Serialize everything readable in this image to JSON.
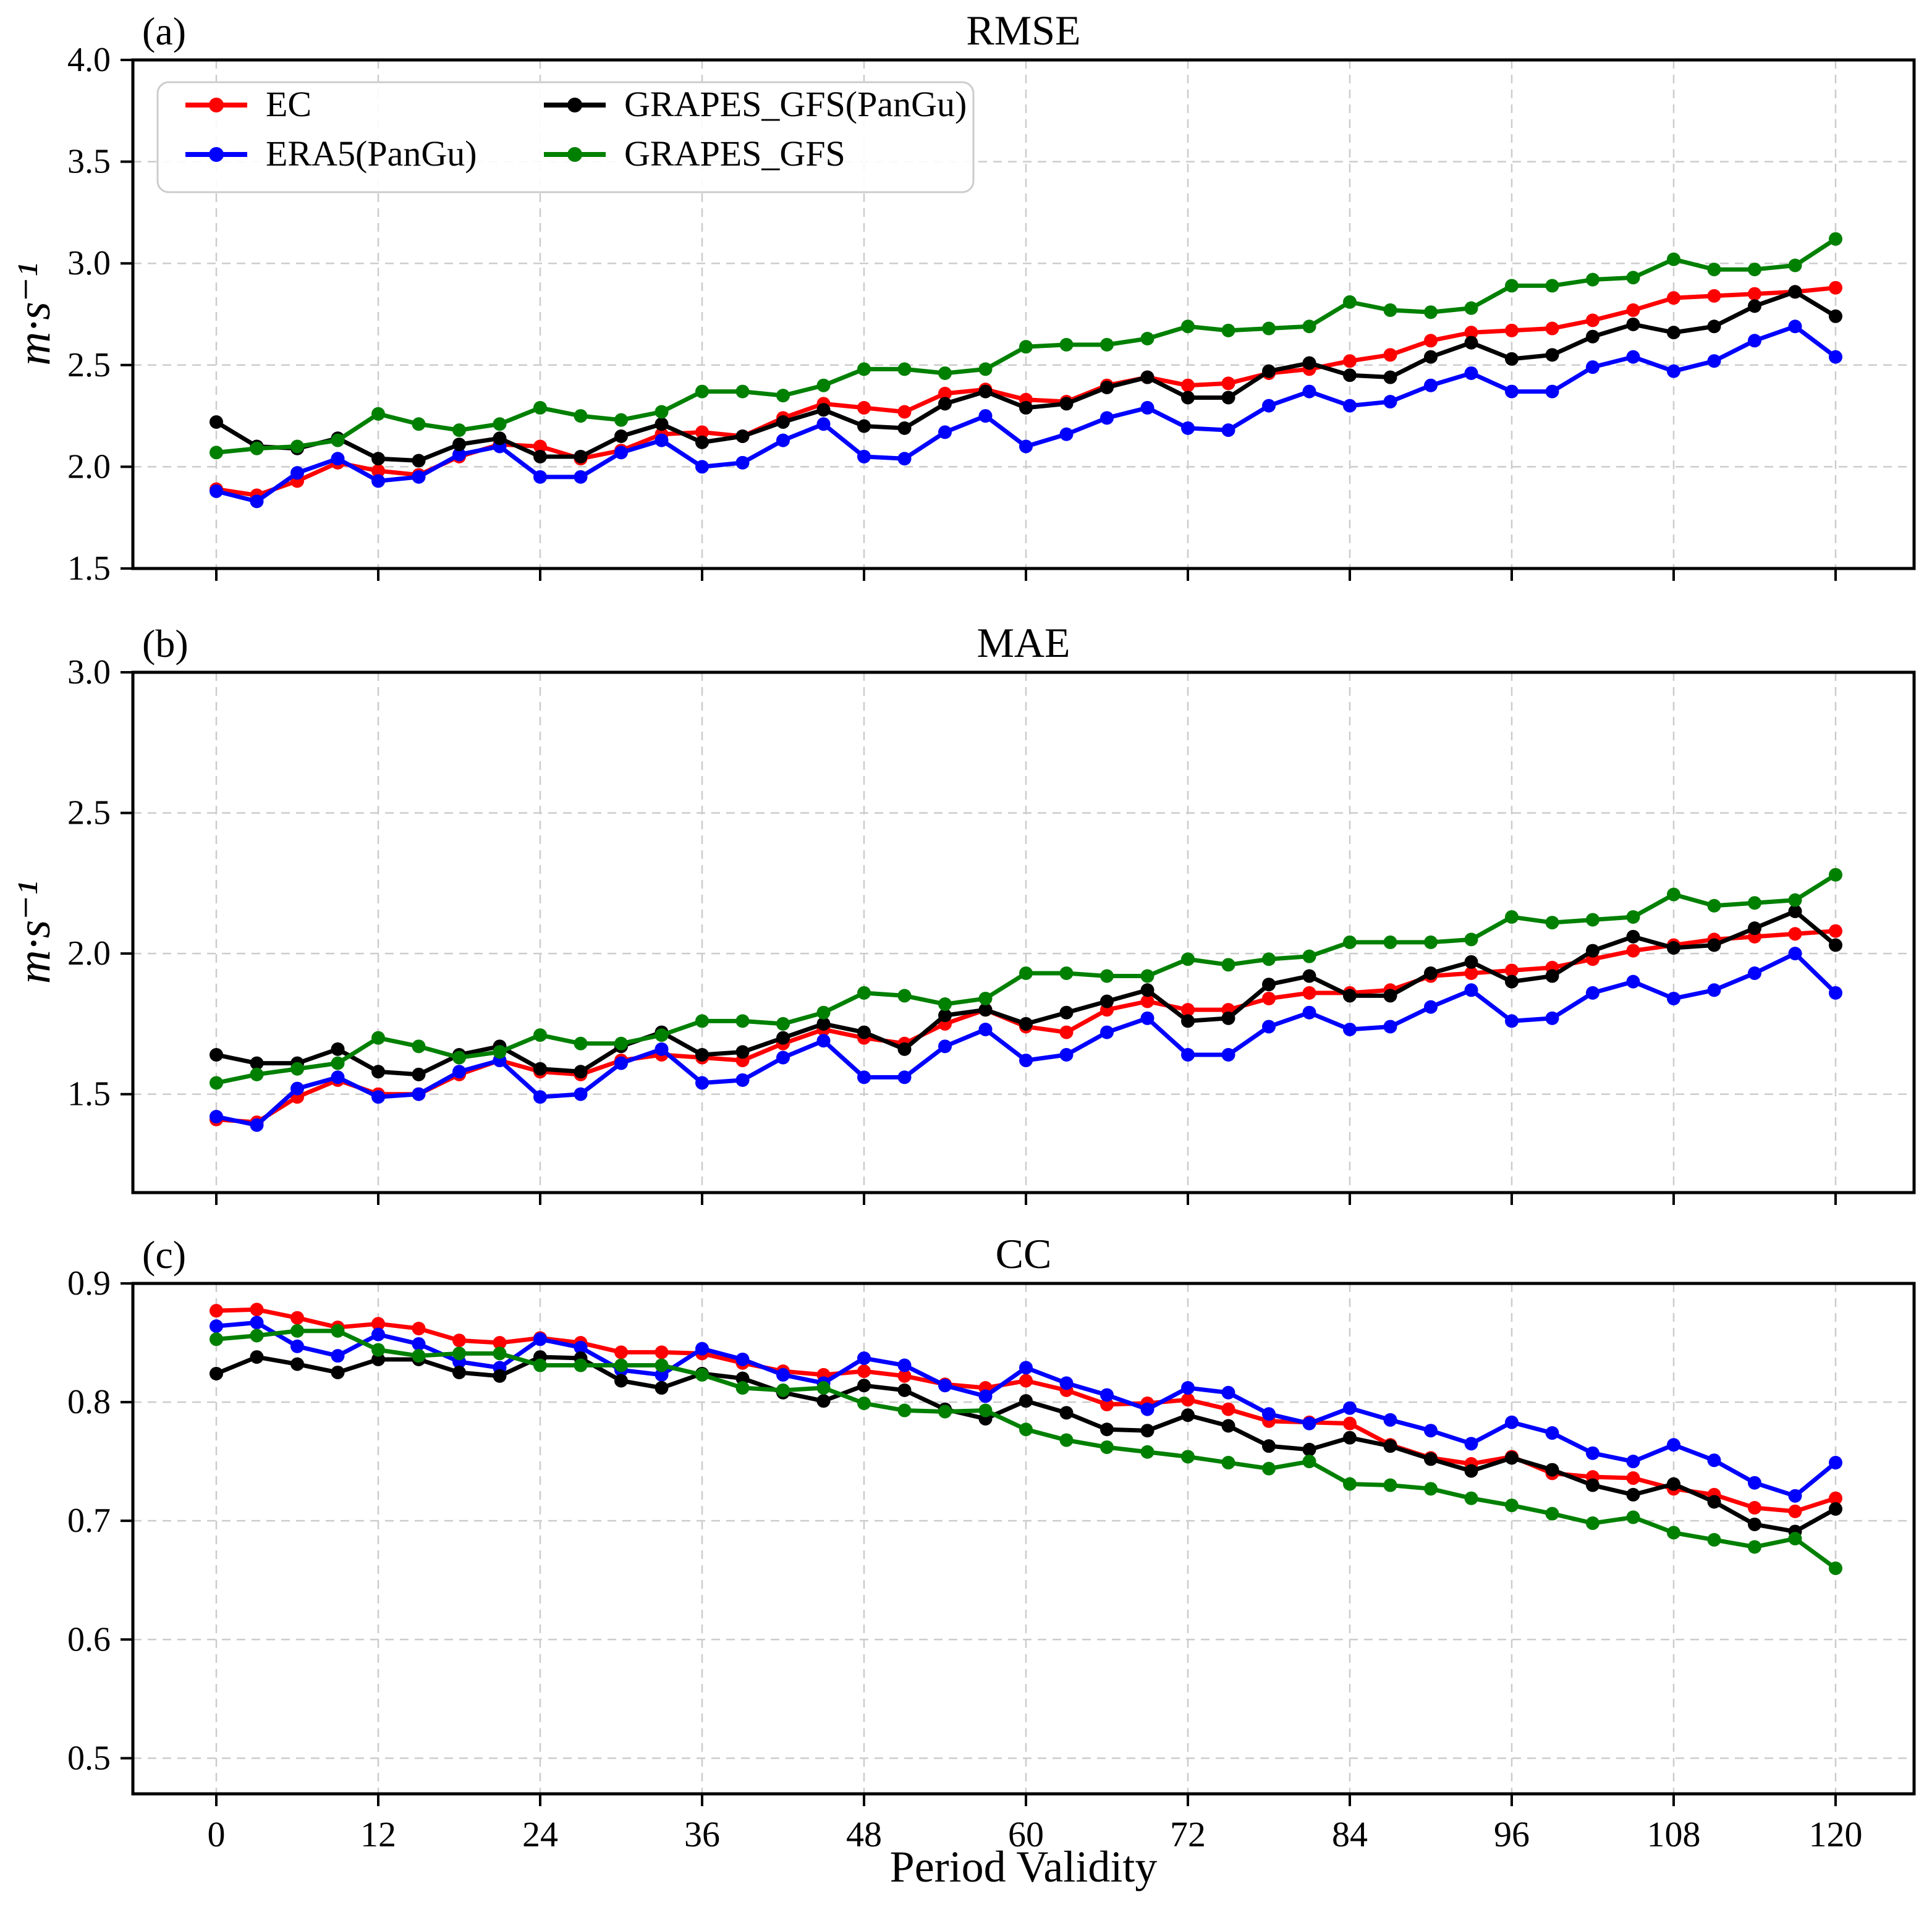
{
  "figure": {
    "xlabel": "Period Validity",
    "xtick_labels": [
      "0",
      "12",
      "24",
      "36",
      "48",
      "60",
      "72",
      "84",
      "96",
      "108",
      "120"
    ],
    "legend": {
      "items": [
        {
          "label": "EC",
          "color": "#ff0000"
        },
        {
          "label": "ERA5(PanGu)",
          "color": "#0000ff"
        },
        {
          "label": "GRAPES_GFS(PanGu)",
          "color": "#000000"
        },
        {
          "label": "GRAPES_GFS",
          "color": "#008000"
        }
      ],
      "position": "upper left of panel a"
    }
  },
  "chart_data": [
    {
      "type": "line",
      "panel_label": "(a)",
      "title": "RMSE",
      "ylabel": "m·s⁻¹",
      "ylim": [
        1.5,
        4.0
      ],
      "yticks": [
        1.5,
        2.0,
        2.5,
        3.0,
        3.5,
        4.0
      ],
      "ytick_labels": [
        "1.5",
        "2.0",
        "2.5",
        "3.0",
        "3.5",
        "4.0"
      ],
      "xlim": [
        -6.2,
        125.8
      ],
      "grid": true,
      "x": [
        0,
        3,
        6,
        9,
        12,
        15,
        18,
        21,
        24,
        27,
        30,
        33,
        36,
        39,
        42,
        45,
        48,
        51,
        54,
        57,
        60,
        63,
        66,
        69,
        72,
        75,
        78,
        81,
        84,
        87,
        90,
        93,
        96,
        99,
        102,
        105,
        108,
        111,
        114,
        117,
        120
      ],
      "series": [
        {
          "name": "EC",
          "color": "#ff0000",
          "values": [
            1.89,
            1.86,
            1.93,
            2.02,
            1.98,
            1.96,
            2.05,
            2.11,
            2.1,
            2.04,
            2.08,
            2.16,
            2.17,
            2.15,
            2.24,
            2.31,
            2.29,
            2.27,
            2.36,
            2.38,
            2.33,
            2.32,
            2.4,
            2.44,
            2.4,
            2.41,
            2.46,
            2.48,
            2.52,
            2.55,
            2.62,
            2.66,
            2.67,
            2.68,
            2.72,
            2.77,
            2.83,
            2.84,
            2.85,
            2.86,
            2.88
          ]
        },
        {
          "name": "ERA5(PanGu)",
          "color": "#0000ff",
          "values": [
            1.88,
            1.83,
            1.97,
            2.04,
            1.93,
            1.95,
            2.06,
            2.1,
            1.95,
            1.95,
            2.07,
            2.13,
            2.0,
            2.02,
            2.13,
            2.21,
            2.05,
            2.04,
            2.17,
            2.25,
            2.1,
            2.16,
            2.24,
            2.29,
            2.19,
            2.18,
            2.3,
            2.37,
            2.3,
            2.32,
            2.4,
            2.46,
            2.37,
            2.37,
            2.49,
            2.54,
            2.47,
            2.52,
            2.62,
            2.69,
            2.54
          ]
        },
        {
          "name": "GRAPES_GFS(PanGu)",
          "color": "#000000",
          "values": [
            2.22,
            2.1,
            2.09,
            2.14,
            2.04,
            2.03,
            2.11,
            2.14,
            2.05,
            2.05,
            2.15,
            2.21,
            2.12,
            2.15,
            2.22,
            2.28,
            2.2,
            2.19,
            2.31,
            2.37,
            2.29,
            2.31,
            2.39,
            2.44,
            2.34,
            2.34,
            2.47,
            2.51,
            2.45,
            2.44,
            2.54,
            2.61,
            2.53,
            2.55,
            2.64,
            2.7,
            2.66,
            2.69,
            2.79,
            2.86,
            2.74
          ]
        },
        {
          "name": "GRAPES_GFS",
          "color": "#008000",
          "values": [
            2.07,
            2.09,
            2.1,
            2.13,
            2.26,
            2.21,
            2.18,
            2.21,
            2.29,
            2.25,
            2.23,
            2.27,
            2.37,
            2.37,
            2.35,
            2.4,
            2.48,
            2.48,
            2.46,
            2.48,
            2.59,
            2.6,
            2.6,
            2.63,
            2.69,
            2.67,
            2.68,
            2.69,
            2.81,
            2.77,
            2.76,
            2.78,
            2.89,
            2.89,
            2.92,
            2.93,
            3.02,
            2.97,
            2.97,
            2.99,
            3.12
          ]
        }
      ]
    },
    {
      "type": "line",
      "panel_label": "(b)",
      "title": "MAE",
      "ylabel": "m·s⁻¹",
      "ylim": [
        1.15,
        3.0
      ],
      "yticks": [
        1.5,
        2.0,
        2.5,
        3.0
      ],
      "ytick_labels": [
        "1.5",
        "2.0",
        "2.5",
        "3.0"
      ],
      "xlim": [
        -6.2,
        125.8
      ],
      "grid": true,
      "x": [
        0,
        3,
        6,
        9,
        12,
        15,
        18,
        21,
        24,
        27,
        30,
        33,
        36,
        39,
        42,
        45,
        48,
        51,
        54,
        57,
        60,
        63,
        66,
        69,
        72,
        75,
        78,
        81,
        84,
        87,
        90,
        93,
        96,
        99,
        102,
        105,
        108,
        111,
        114,
        117,
        120
      ],
      "series": [
        {
          "name": "EC",
          "color": "#ff0000",
          "values": [
            1.41,
            1.4,
            1.49,
            1.55,
            1.5,
            1.5,
            1.57,
            1.62,
            1.58,
            1.57,
            1.62,
            1.64,
            1.63,
            1.62,
            1.68,
            1.73,
            1.7,
            1.68,
            1.75,
            1.8,
            1.74,
            1.72,
            1.8,
            1.83,
            1.8,
            1.8,
            1.84,
            1.86,
            1.86,
            1.87,
            1.92,
            1.93,
            1.94,
            1.95,
            1.98,
            2.01,
            2.03,
            2.05,
            2.06,
            2.07,
            2.08
          ]
        },
        {
          "name": "ERA5(PanGu)",
          "color": "#0000ff",
          "values": [
            1.42,
            1.39,
            1.52,
            1.56,
            1.49,
            1.5,
            1.58,
            1.62,
            1.49,
            1.5,
            1.61,
            1.66,
            1.54,
            1.55,
            1.63,
            1.69,
            1.56,
            1.56,
            1.67,
            1.73,
            1.62,
            1.64,
            1.72,
            1.77,
            1.64,
            1.64,
            1.74,
            1.79,
            1.73,
            1.74,
            1.81,
            1.87,
            1.76,
            1.77,
            1.86,
            1.9,
            1.84,
            1.87,
            1.93,
            2.0,
            1.86
          ]
        },
        {
          "name": "GRAPES_GFS(PanGu)",
          "color": "#000000",
          "values": [
            1.64,
            1.61,
            1.61,
            1.66,
            1.58,
            1.57,
            1.64,
            1.67,
            1.59,
            1.58,
            1.67,
            1.72,
            1.64,
            1.65,
            1.7,
            1.75,
            1.72,
            1.66,
            1.78,
            1.8,
            1.75,
            1.79,
            1.83,
            1.87,
            1.76,
            1.77,
            1.89,
            1.92,
            1.85,
            1.85,
            1.93,
            1.97,
            1.9,
            1.92,
            2.01,
            2.06,
            2.02,
            2.03,
            2.09,
            2.15,
            2.03
          ]
        },
        {
          "name": "GRAPES_GFS",
          "color": "#008000",
          "values": [
            1.54,
            1.57,
            1.59,
            1.61,
            1.7,
            1.67,
            1.63,
            1.65,
            1.71,
            1.68,
            1.68,
            1.71,
            1.76,
            1.76,
            1.75,
            1.79,
            1.86,
            1.85,
            1.82,
            1.84,
            1.93,
            1.93,
            1.92,
            1.92,
            1.98,
            1.96,
            1.98,
            1.99,
            2.04,
            2.04,
            2.04,
            2.05,
            2.13,
            2.11,
            2.12,
            2.13,
            2.21,
            2.17,
            2.18,
            2.19,
            2.28
          ]
        }
      ]
    },
    {
      "type": "line",
      "panel_label": "(c)",
      "title": "CC",
      "ylabel": "",
      "ylim": [
        0.47,
        0.9
      ],
      "yticks": [
        0.5,
        0.6,
        0.7,
        0.8,
        0.9
      ],
      "ytick_labels": [
        "0.5",
        "0.6",
        "0.7",
        "0.8",
        "0.9"
      ],
      "xlim": [
        -6.2,
        125.8
      ],
      "grid": true,
      "x": [
        0,
        3,
        6,
        9,
        12,
        15,
        18,
        21,
        24,
        27,
        30,
        33,
        36,
        39,
        42,
        45,
        48,
        51,
        54,
        57,
        60,
        63,
        66,
        69,
        72,
        75,
        78,
        81,
        84,
        87,
        90,
        93,
        96,
        99,
        102,
        105,
        108,
        111,
        114,
        117,
        120
      ],
      "series": [
        {
          "name": "EC",
          "color": "#ff0000",
          "values": [
            0.877,
            0.878,
            0.871,
            0.863,
            0.866,
            0.862,
            0.852,
            0.85,
            0.854,
            0.85,
            0.842,
            0.842,
            0.841,
            0.833,
            0.826,
            0.823,
            0.826,
            0.822,
            0.815,
            0.812,
            0.818,
            0.81,
            0.798,
            0.799,
            0.802,
            0.794,
            0.784,
            0.783,
            0.782,
            0.764,
            0.753,
            0.748,
            0.754,
            0.74,
            0.737,
            0.736,
            0.727,
            0.722,
            0.711,
            0.708,
            0.719
          ]
        },
        {
          "name": "ERA5(PanGu)",
          "color": "#0000ff",
          "values": [
            0.864,
            0.867,
            0.847,
            0.839,
            0.857,
            0.849,
            0.834,
            0.829,
            0.853,
            0.846,
            0.827,
            0.823,
            0.845,
            0.836,
            0.823,
            0.816,
            0.837,
            0.831,
            0.814,
            0.805,
            0.829,
            0.816,
            0.806,
            0.794,
            0.812,
            0.808,
            0.79,
            0.782,
            0.795,
            0.785,
            0.776,
            0.765,
            0.783,
            0.774,
            0.757,
            0.75,
            0.764,
            0.751,
            0.732,
            0.721,
            0.749
          ]
        },
        {
          "name": "GRAPES_GFS(PanGu)",
          "color": "#000000",
          "values": [
            0.824,
            0.838,
            0.832,
            0.825,
            0.836,
            0.836,
            0.825,
            0.822,
            0.838,
            0.837,
            0.818,
            0.812,
            0.824,
            0.82,
            0.808,
            0.801,
            0.814,
            0.81,
            0.794,
            0.786,
            0.801,
            0.791,
            0.777,
            0.776,
            0.789,
            0.78,
            0.763,
            0.76,
            0.77,
            0.763,
            0.752,
            0.742,
            0.753,
            0.743,
            0.73,
            0.722,
            0.731,
            0.716,
            0.697,
            0.691,
            0.71
          ]
        },
        {
          "name": "GRAPES_GFS",
          "color": "#008000",
          "values": [
            0.853,
            0.856,
            0.86,
            0.86,
            0.844,
            0.839,
            0.841,
            0.841,
            0.831,
            0.831,
            0.831,
            0.831,
            0.823,
            0.812,
            0.81,
            0.812,
            0.799,
            0.793,
            0.792,
            0.793,
            0.777,
            0.768,
            0.762,
            0.758,
            0.754,
            0.749,
            0.744,
            0.75,
            0.731,
            0.73,
            0.727,
            0.719,
            0.713,
            0.706,
            0.698,
            0.703,
            0.69,
            0.684,
            0.678,
            0.685,
            0.66
          ]
        }
      ]
    }
  ]
}
